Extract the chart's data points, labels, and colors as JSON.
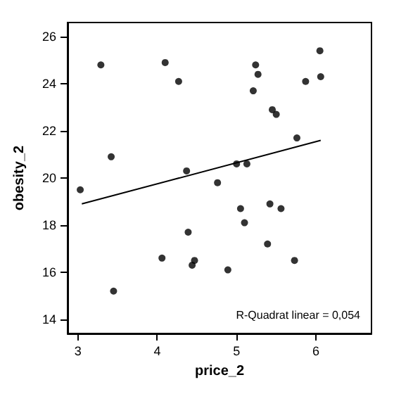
{
  "chart_data": {
    "type": "scatter",
    "xlabel": "price_2",
    "ylabel": "obesity_2",
    "xlim": [
      2.87,
      6.7
    ],
    "ylim": [
      13.4,
      26.6
    ],
    "xticks": [
      3,
      4,
      5,
      6
    ],
    "yticks": [
      14,
      16,
      18,
      20,
      22,
      24,
      26
    ],
    "grid": false,
    "marker": "circle",
    "annotations": [
      "R-Quadrat linear = 0,054"
    ],
    "series": [
      {
        "color": "#000000",
        "x": [
          3.03,
          3.29,
          3.42,
          3.45,
          4.1,
          4.27,
          4.37,
          4.39,
          4.44,
          4.47,
          4.06,
          4.76,
          4.89,
          5.0,
          5.05,
          5.1,
          5.13,
          5.21,
          5.24,
          5.27,
          5.39,
          5.42,
          5.45,
          5.5,
          5.56,
          5.76,
          5.73,
          5.87,
          6.05,
          6.06
        ],
        "values": [
          19.5,
          24.8,
          20.9,
          15.2,
          24.9,
          24.1,
          20.3,
          17.7,
          16.3,
          16.5,
          16.6,
          19.8,
          16.1,
          20.6,
          18.7,
          18.1,
          20.6,
          23.7,
          24.8,
          24.4,
          17.2,
          18.9,
          22.9,
          22.7,
          18.7,
          21.7,
          16.5,
          24.1,
          25.4,
          24.3
        ]
      },
      {
        "type": "line",
        "marker": "none",
        "color": "#000000",
        "x": [
          3.05,
          6.06
        ],
        "values": [
          18.9,
          21.6
        ]
      }
    ]
  }
}
